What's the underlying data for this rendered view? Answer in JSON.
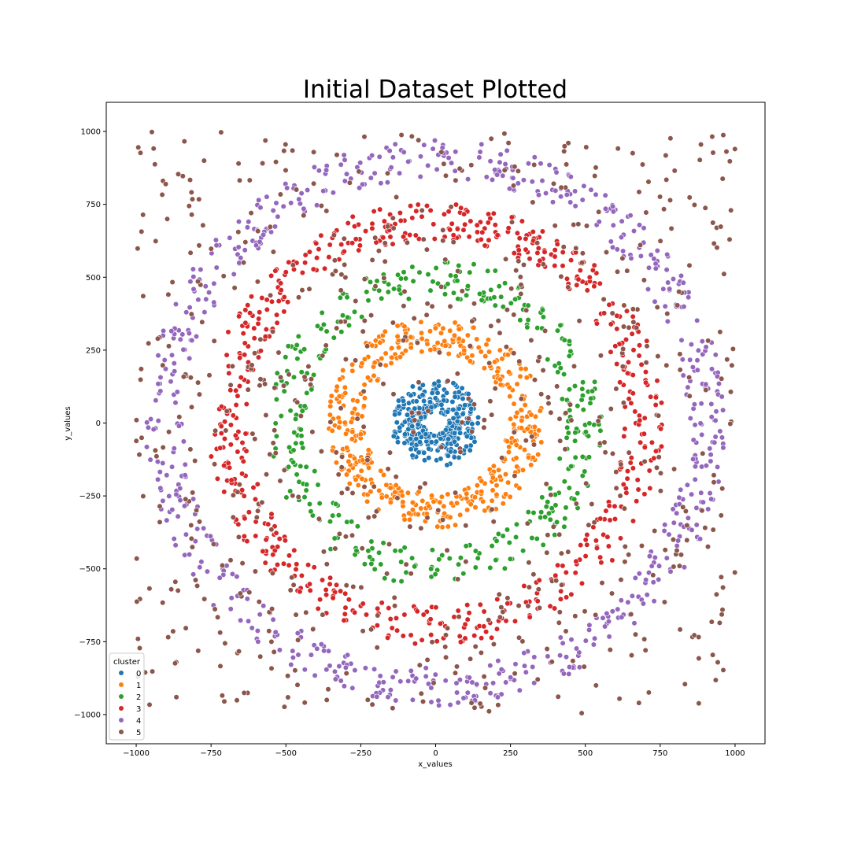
{
  "chart_data": {
    "type": "scatter",
    "title": "Initial Dataset Plotted",
    "xlabel": "x_values",
    "ylabel": "y_values",
    "xlim": [
      -1100,
      1100
    ],
    "ylim": [
      -1100,
      1100
    ],
    "xticks": [
      -1000,
      -750,
      -500,
      -250,
      0,
      250,
      500,
      750,
      1000
    ],
    "yticks": [
      -1000,
      -750,
      -500,
      -250,
      0,
      250,
      500,
      750,
      1000
    ],
    "xtick_labels": [
      "−1000",
      "−750",
      "−500",
      "−250",
      "0",
      "250",
      "500",
      "750",
      "1000"
    ],
    "ytick_labels": [
      "−1000",
      "−750",
      "−500",
      "−250",
      "0",
      "250",
      "500",
      "750",
      "1000"
    ],
    "grid": false,
    "legend": {
      "title": "cluster",
      "placement": "lower-left"
    },
    "series": [
      {
        "name": "0",
        "color": "#1f77b4",
        "points": 300,
        "shape": "ring",
        "radius_range": [
          40,
          150
        ]
      },
      {
        "name": "1",
        "color": "#ff7f0e",
        "points": 450,
        "shape": "ring",
        "radius_range": [
          240,
          360
        ]
      },
      {
        "name": "2",
        "color": "#2ca02c",
        "points": 350,
        "shape": "ring",
        "radius_range": [
          430,
          560
        ]
      },
      {
        "name": "3",
        "color": "#d62728",
        "points": 600,
        "shape": "ring",
        "radius_range": [
          630,
          760
        ]
      },
      {
        "name": "4",
        "color": "#9467bd",
        "points": 650,
        "shape": "ring",
        "radius_range": [
          840,
          970
        ]
      },
      {
        "name": "5",
        "color": "#8c564b",
        "points": 700,
        "shape": "scatter",
        "range": [
          -1000,
          1000
        ]
      }
    ]
  }
}
